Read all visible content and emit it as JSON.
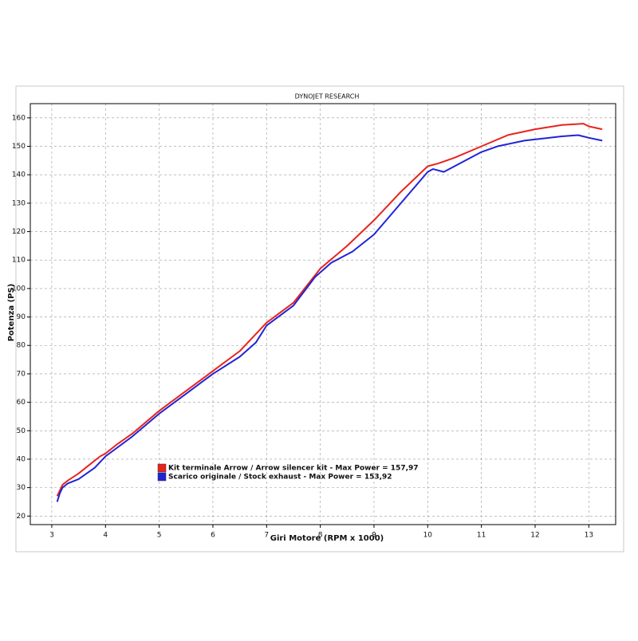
{
  "chart_data": {
    "type": "line",
    "title": "DYNOJET RESEARCH",
    "x_label": "Giri Motore (RPM x 1000)",
    "y_label": "Potenza (PS)",
    "xlim": [
      2.6,
      13.5
    ],
    "ylim": [
      17,
      165
    ],
    "xticks": [
      3,
      4,
      5,
      6,
      7,
      8,
      9,
      10,
      11,
      12,
      13
    ],
    "yticks": [
      20,
      30,
      40,
      50,
      60,
      70,
      80,
      90,
      100,
      110,
      120,
      130,
      140,
      150,
      160
    ],
    "grid": true,
    "series": [
      {
        "name": "Kit terminale Arrow / Arrow silencer kit - Max Power = 157,97",
        "color": "#e8231e",
        "x": [
          3.1,
          3.15,
          3.2,
          3.3,
          3.5,
          3.7,
          3.9,
          4.0,
          4.2,
          4.5,
          5.0,
          5.5,
          6.0,
          6.5,
          7.0,
          7.5,
          8.0,
          8.5,
          9.0,
          9.5,
          10.0,
          10.2,
          10.5,
          11.0,
          11.5,
          12.0,
          12.5,
          12.9,
          13.0,
          13.25
        ],
        "values": [
          27,
          29,
          31,
          32.5,
          35,
          38,
          41,
          42,
          45,
          49,
          57,
          64,
          71,
          78,
          88,
          95,
          107,
          115,
          124,
          134,
          143,
          144,
          146,
          150,
          154,
          156,
          157.5,
          157.97,
          157,
          156
        ]
      },
      {
        "name": "Scarico originale / Stock exhaust - Max Power = 153,92",
        "color": "#1f24d6",
        "x": [
          3.1,
          3.15,
          3.2,
          3.3,
          3.5,
          3.8,
          4.0,
          4.5,
          5.0,
          5.5,
          6.0,
          6.5,
          6.8,
          7.0,
          7.5,
          7.9,
          8.2,
          8.6,
          9.0,
          9.5,
          10.0,
          10.1,
          10.3,
          10.5,
          11.0,
          11.3,
          11.8,
          12.5,
          12.8,
          13.0,
          13.25
        ],
        "values": [
          25,
          28,
          30,
          31.5,
          33,
          37,
          41,
          48,
          56,
          63,
          70,
          76,
          81,
          87,
          94,
          104,
          109,
          113,
          119,
          130,
          141,
          142,
          141,
          143,
          148,
          150,
          152,
          153.5,
          153.92,
          153,
          152
        ]
      }
    ]
  }
}
